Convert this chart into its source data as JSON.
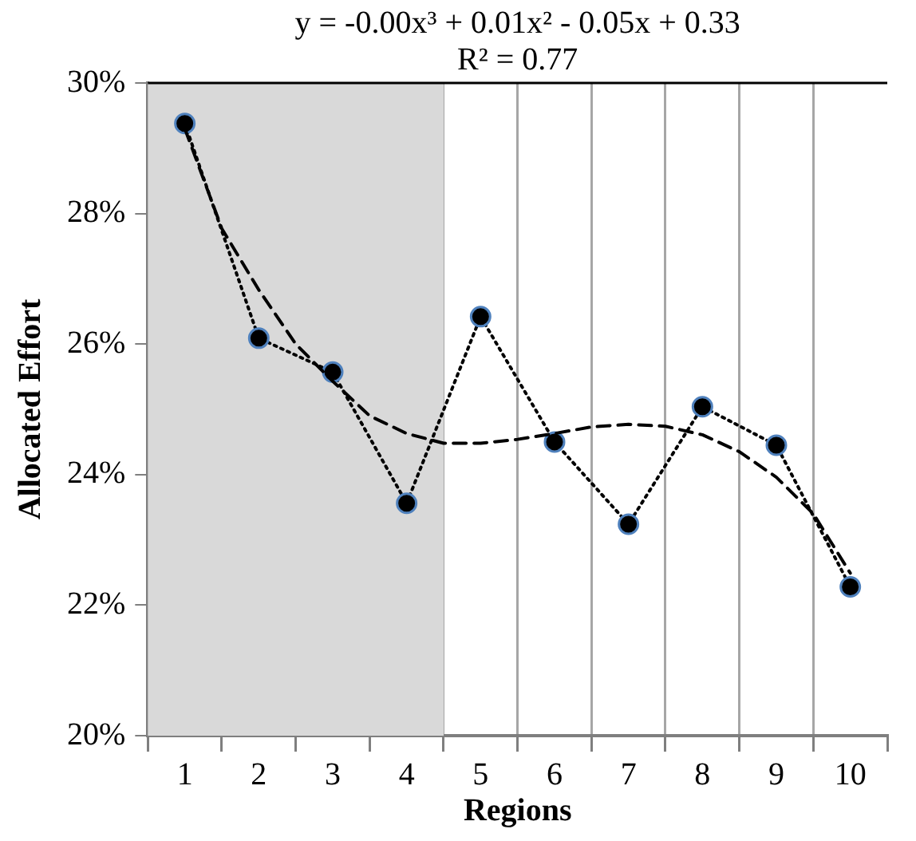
{
  "chart_data": {
    "type": "line",
    "xlabel": "Regions",
    "ylabel": "Allocated Effort",
    "annotations": [
      "y = -0.00x³ + 0.01x² - 0.05x + 0.33",
      "R² = 0.77"
    ],
    "x": [
      1,
      2,
      3,
      4,
      5,
      6,
      7,
      8,
      9,
      10
    ],
    "series": [
      {
        "color": "#000000",
        "marker": "circle",
        "line_style": "dotted",
        "values": [
          29.38,
          26.09,
          25.57,
          23.56,
          26.42,
          24.5,
          23.24,
          25.04,
          24.45,
          22.28
        ]
      },
      {
        "type": "line",
        "color": "#000000",
        "marker": "none",
        "line_style": "dashed",
        "x": [
          1,
          1.5,
          2,
          2.5,
          3,
          3.5,
          4,
          4.5,
          5,
          5.5,
          6,
          6.5,
          7,
          7.5,
          8,
          8.5,
          9,
          9.5,
          10
        ],
        "values": [
          29.3,
          27.77,
          26.83,
          26.0,
          25.43,
          24.9,
          24.63,
          24.48,
          24.48,
          24.54,
          24.63,
          24.73,
          24.77,
          24.74,
          24.61,
          24.35,
          23.96,
          23.4,
          22.49
        ]
      }
    ],
    "xlim": [
      0.5,
      10.5
    ],
    "xticks": [
      {
        "value": 0.5,
        "label": null
      },
      1,
      {
        "value": 1.5,
        "label": null
      },
      2,
      {
        "value": 2.5,
        "label": null
      },
      3,
      {
        "value": 3.5,
        "label": null
      },
      4,
      {
        "value": 4.5,
        "label": null
      },
      5,
      {
        "value": 5.5,
        "label": null
      },
      6,
      {
        "value": 6.5,
        "label": null
      },
      7,
      {
        "value": 7.5,
        "label": null
      },
      8,
      {
        "value": 8.5,
        "label": null
      },
      9,
      {
        "value": 9.5,
        "label": null
      },
      10,
      {
        "value": 10.5,
        "label": null
      }
    ],
    "ylim": [
      20,
      30
    ],
    "yticks": [
      {
        "value": 20,
        "label": "20%"
      },
      {
        "value": 22,
        "label": "22%"
      },
      {
        "value": 24,
        "label": "24%"
      },
      {
        "value": 26,
        "label": "26%"
      },
      {
        "value": 28,
        "label": "28%"
      },
      {
        "value": 30,
        "label": "30%"
      }
    ],
    "grid": "x",
    "bands": [
      {
        "axis": "x",
        "from": 0.5,
        "to": 4.5,
        "color": "#d9d9d9"
      }
    ]
  }
}
